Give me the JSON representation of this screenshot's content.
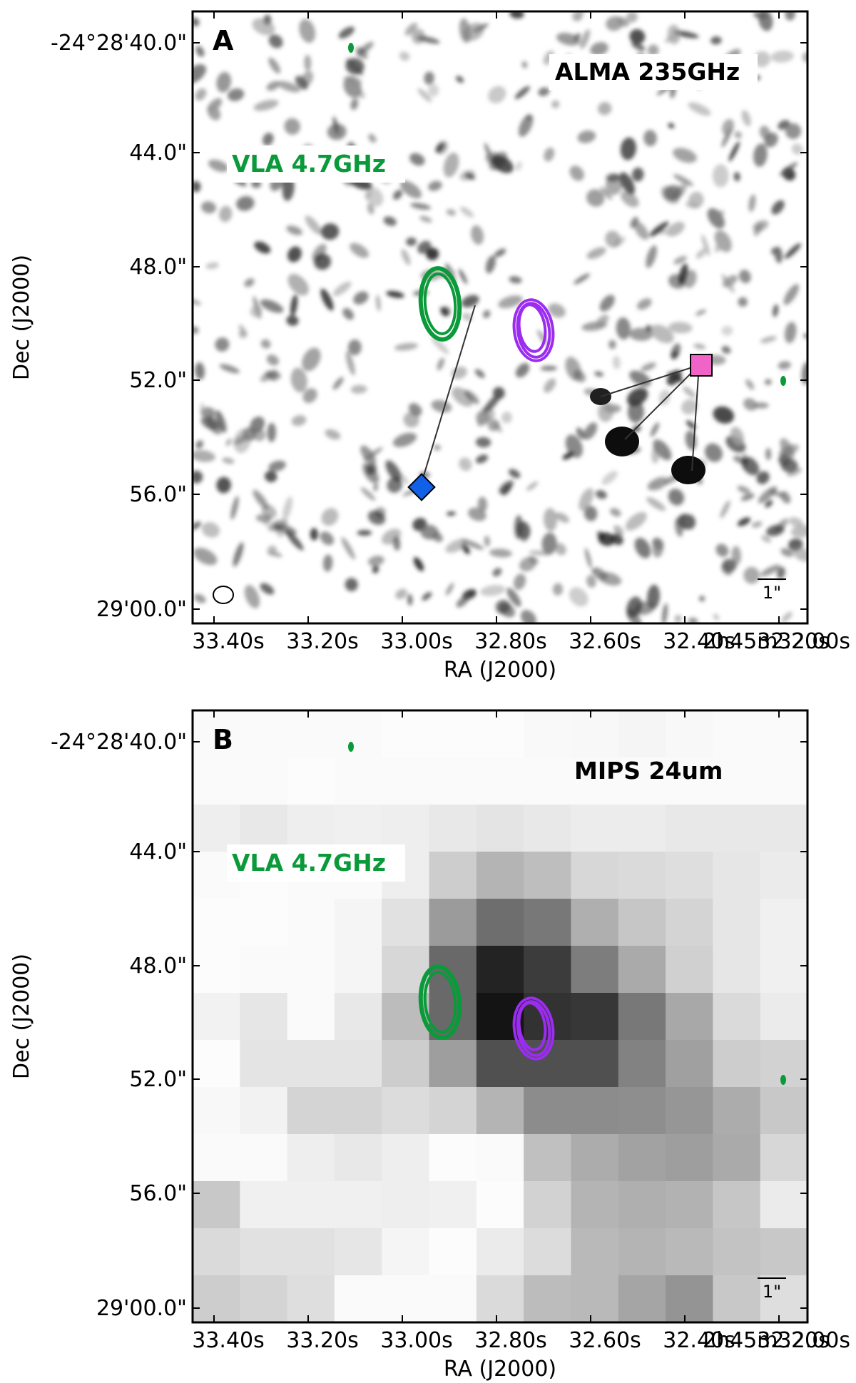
{
  "panels": [
    {
      "letter": "A",
      "image_label": "ALMA 235GHz",
      "contour_label": "VLA 4.7GHz",
      "scale_bar_label": "1\"",
      "background": "alma-noise-map",
      "xlabel": "RA (J2000)",
      "ylabel": "Dec (J2000)",
      "x_ticks": [
        "33.40s",
        "33.20s",
        "33.00s",
        "32.80s",
        "32.60s",
        "32.40s",
        "32.20s",
        "2h45m32.00s"
      ],
      "y_ticks": [
        "-24°28'40.0\"",
        "44.0\"",
        "48.0\"",
        "52.0\"",
        "56.0\"",
        "29'00.0\""
      ]
    },
    {
      "letter": "B",
      "image_label": "MIPS 24um",
      "contour_label": "VLA 4.7GHz",
      "scale_bar_label": "1\"",
      "background": "mips-pixel-map",
      "xlabel": "RA (J2000)",
      "ylabel": "Dec (J2000)",
      "x_ticks": [
        "33.40s",
        "33.20s",
        "33.00s",
        "32.80s",
        "32.60s",
        "32.40s",
        "32.20s",
        "2h45m32.00s"
      ],
      "y_ticks": [
        "-24°28'40.0\"",
        "44.0\"",
        "48.0\"",
        "52.0\"",
        "56.0\"",
        "29'00.0\""
      ]
    }
  ],
  "colors": {
    "vla_contour": "#0a9a3a",
    "purple_contour": "#9b2cf0",
    "pink_marker": "#f064c8",
    "blue_marker": "#1060e8",
    "axis": "#000000",
    "label_box": "#ffffff"
  },
  "mips_grid": [
    [
      250,
      250,
      250,
      250,
      252,
      252,
      252,
      249,
      248,
      245,
      248,
      250,
      250
    ],
    [
      250,
      250,
      252,
      250,
      250,
      250,
      250,
      250,
      250,
      250,
      250,
      250,
      250
    ],
    [
      238,
      232,
      238,
      240,
      238,
      232,
      228,
      232,
      236,
      236,
      232,
      232,
      232
    ],
    [
      250,
      252,
      250,
      250,
      238,
      205,
      180,
      190,
      215,
      218,
      222,
      230,
      235
    ],
    [
      252,
      252,
      250,
      245,
      225,
      155,
      110,
      120,
      175,
      198,
      212,
      230,
      240
    ],
    [
      252,
      250,
      250,
      245,
      215,
      105,
      35,
      60,
      125,
      170,
      208,
      230,
      240
    ],
    [
      242,
      230,
      250,
      232,
      188,
      105,
      20,
      50,
      55,
      120,
      168,
      218,
      235
    ],
    [
      252,
      228,
      228,
      228,
      205,
      158,
      80,
      80,
      80,
      130,
      160,
      205,
      210
    ],
    [
      248,
      242,
      212,
      212,
      220,
      212,
      180,
      140,
      140,
      142,
      150,
      172,
      200
    ],
    [
      250,
      250,
      238,
      232,
      238,
      252,
      250,
      192,
      172,
      162,
      158,
      170,
      215
    ],
    [
      200,
      240,
      240,
      240,
      238,
      240,
      252,
      210,
      180,
      175,
      178,
      198,
      235
    ],
    [
      218,
      225,
      225,
      230,
      245,
      252,
      235,
      220,
      185,
      180,
      185,
      195,
      200
    ],
    [
      205,
      212,
      222,
      250,
      250,
      250,
      218,
      188,
      185,
      165,
      148,
      200,
      222
    ]
  ]
}
